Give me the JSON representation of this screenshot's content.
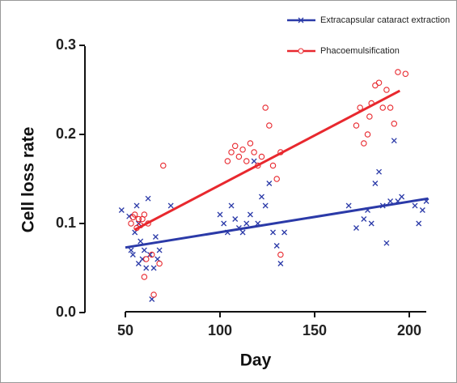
{
  "chart_data": {
    "type": "scatter",
    "x_label": "Day",
    "y_label": "Cell loss rate",
    "xlim": [
      50,
      210
    ],
    "ylim": [
      0,
      0.3
    ],
    "xticks": [
      50,
      100,
      150,
      200
    ],
    "yticks": [
      {
        "value": 0,
        "label": "0.0"
      },
      0.1,
      0.2,
      0.3
    ],
    "series": [
      {
        "name": "Extracapsular cataract extraction",
        "color": "#2b3aa8",
        "marker": "x",
        "x": [
          48,
          52,
          53,
          54,
          55,
          56,
          57,
          57,
          58,
          59,
          60,
          61,
          62,
          63,
          64,
          65,
          66,
          67,
          68,
          74,
          100,
          102,
          104,
          106,
          108,
          110,
          112,
          114,
          116,
          118,
          120,
          122,
          124,
          126,
          128,
          130,
          132,
          134,
          168,
          172,
          176,
          178,
          180,
          182,
          184,
          186,
          188,
          190,
          192,
          194,
          196,
          203,
          205,
          207,
          209
        ],
        "values": [
          0.115,
          0.108,
          0.07,
          0.065,
          0.09,
          0.12,
          0.1,
          0.055,
          0.08,
          0.06,
          0.07,
          0.05,
          0.128,
          0.065,
          0.015,
          0.05,
          0.085,
          0.06,
          0.07,
          0.12,
          0.11,
          0.1,
          0.09,
          0.12,
          0.105,
          0.095,
          0.09,
          0.1,
          0.11,
          0.17,
          0.1,
          0.13,
          0.12,
          0.145,
          0.09,
          0.075,
          0.055,
          0.09,
          0.12,
          0.095,
          0.105,
          0.115,
          0.1,
          0.145,
          0.158,
          0.12,
          0.078,
          0.125,
          0.193,
          0.125,
          0.13,
          0.12,
          0.1,
          0.115,
          0.125
        ],
        "fit": {
          "x": [
            50,
            210
          ],
          "values": [
            0.073,
            0.128
          ]
        }
      },
      {
        "name": "Phacoemulsification",
        "color": "#e8282e",
        "marker": "o",
        "x": [
          53,
          54,
          55,
          56,
          57,
          58,
          59,
          60,
          61,
          60,
          62,
          64,
          65,
          68,
          70,
          104,
          106,
          108,
          110,
          112,
          114,
          116,
          118,
          120,
          122,
          124,
          126,
          128,
          130,
          132,
          132,
          172,
          174,
          176,
          178,
          179,
          180,
          182,
          184,
          186,
          188,
          190,
          192,
          194,
          198
        ],
        "values": [
          0.1,
          0.107,
          0.11,
          0.095,
          0.105,
          0.098,
          0.105,
          0.11,
          0.06,
          0.04,
          0.1,
          0.065,
          0.02,
          0.055,
          0.165,
          0.17,
          0.18,
          0.187,
          0.175,
          0.183,
          0.17,
          0.19,
          0.18,
          0.165,
          0.175,
          0.23,
          0.21,
          0.165,
          0.15,
          0.18,
          0.065,
          0.21,
          0.23,
          0.19,
          0.2,
          0.22,
          0.235,
          0.255,
          0.258,
          0.23,
          0.25,
          0.23,
          0.212,
          0.27,
          0.268
        ],
        "fit": {
          "x": [
            55,
            195
          ],
          "values": [
            0.093,
            0.249
          ]
        }
      }
    ]
  }
}
